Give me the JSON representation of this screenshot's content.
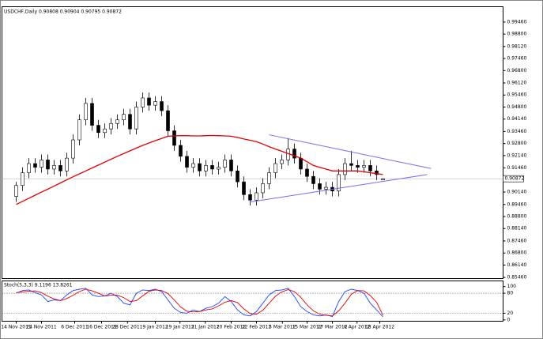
{
  "chart_data": [
    {
      "type": "candlestick",
      "title": "USDCHF,Daily  0.90808 0.90904 0.90795 0.90872",
      "open": [
        0.899,
        0.905,
        0.912,
        0.917,
        0.915,
        0.919,
        0.914,
        0.916,
        0.913,
        0.92,
        0.93,
        0.941,
        0.95,
        0.938,
        0.934,
        0.936,
        0.939,
        0.941,
        0.944,
        0.936,
        0.948,
        0.953,
        0.949,
        0.951,
        0.946,
        0.935,
        0.927,
        0.921,
        0.915,
        0.917,
        0.913,
        0.916,
        0.914,
        0.915,
        0.919,
        0.913,
        0.907,
        0.9,
        0.897,
        0.901,
        0.906,
        0.912,
        0.917,
        0.919,
        0.925,
        0.92,
        0.914,
        0.91,
        0.906,
        0.903,
        0.904,
        0.902,
        0.911,
        0.917,
        0.916,
        0.915,
        0.916,
        0.913,
        0.90808
      ],
      "high": [
        0.907,
        0.915,
        0.92,
        0.92,
        0.922,
        0.922,
        0.919,
        0.919,
        0.923,
        0.933,
        0.944,
        0.953,
        0.953,
        0.941,
        0.939,
        0.942,
        0.944,
        0.947,
        0.947,
        0.951,
        0.956,
        0.956,
        0.954,
        0.954,
        0.949,
        0.938,
        0.93,
        0.924,
        0.92,
        0.92,
        0.919,
        0.919,
        0.918,
        0.922,
        0.922,
        0.916,
        0.91,
        0.903,
        0.904,
        0.909,
        0.915,
        0.92,
        0.922,
        0.931,
        0.928,
        0.923,
        0.917,
        0.913,
        0.909,
        0.907,
        0.907,
        0.914,
        0.92,
        0.924,
        0.919,
        0.919,
        0.919,
        0.916,
        0.90904
      ],
      "low": [
        0.896,
        0.902,
        0.909,
        0.912,
        0.912,
        0.911,
        0.911,
        0.91,
        0.91,
        0.917,
        0.927,
        0.938,
        0.935,
        0.931,
        0.931,
        0.933,
        0.936,
        0.938,
        0.933,
        0.933,
        0.945,
        0.946,
        0.946,
        0.943,
        0.932,
        0.924,
        0.918,
        0.912,
        0.912,
        0.91,
        0.91,
        0.911,
        0.911,
        0.912,
        0.91,
        0.904,
        0.897,
        0.894,
        0.894,
        0.898,
        0.903,
        0.909,
        0.914,
        0.916,
        0.917,
        0.911,
        0.907,
        0.903,
        0.9,
        0.9,
        0.899,
        0.899,
        0.908,
        0.913,
        0.912,
        0.912,
        0.91,
        0.908,
        0.90795
      ],
      "close": [
        0.905,
        0.912,
        0.917,
        0.915,
        0.919,
        0.914,
        0.916,
        0.913,
        0.92,
        0.93,
        0.941,
        0.95,
        0.938,
        0.934,
        0.936,
        0.939,
        0.941,
        0.944,
        0.936,
        0.948,
        0.953,
        0.949,
        0.951,
        0.946,
        0.935,
        0.927,
        0.921,
        0.915,
        0.917,
        0.913,
        0.916,
        0.914,
        0.915,
        0.919,
        0.913,
        0.907,
        0.9,
        0.897,
        0.901,
        0.906,
        0.912,
        0.917,
        0.919,
        0.925,
        0.92,
        0.914,
        0.91,
        0.906,
        0.903,
        0.904,
        0.902,
        0.911,
        0.917,
        0.916,
        0.915,
        0.916,
        0.913,
        0.911,
        0.90872
      ],
      "overlays": [
        {
          "color": "#e00000",
          "values": [
            0.8946,
            0.8963,
            0.898,
            0.8997,
            0.9014,
            0.903,
            0.9047,
            0.9064,
            0.9081,
            0.9098,
            0.9114,
            0.913,
            0.9146,
            0.9162,
            0.9178,
            0.9194,
            0.921,
            0.9225,
            0.924,
            0.9255,
            0.927,
            0.9283,
            0.9296,
            0.9308,
            0.932,
            0.9322,
            0.9323,
            0.9323,
            0.9322,
            0.9322,
            0.9323,
            0.9324,
            0.9323,
            0.9322,
            0.932,
            0.9313,
            0.9305,
            0.9298,
            0.929,
            0.9277,
            0.9263,
            0.925,
            0.9238,
            0.9225,
            0.9213,
            0.92,
            0.918,
            0.916,
            0.915,
            0.914,
            0.913,
            0.913,
            0.913,
            0.913,
            0.913,
            0.9125,
            0.912,
            0.9115,
            0.911
          ]
        }
      ],
      "trendlines": [
        {
          "color": "#7b68ee",
          "x": [
            40,
            65.6
          ],
          "y": [
            0.9328,
            0.9143
          ]
        },
        {
          "color": "#7b68ee",
          "x": [
            36.9,
            65
          ],
          "y": [
            0.8959,
            0.911
          ]
        }
      ],
      "last_price": 0.90872,
      "xlim": [
        -2.25,
        77
      ],
      "ylim": [
        0.854,
        1.003
      ],
      "yticks": [
        {
          "value": 0.9946,
          "label": "0.99460"
        },
        {
          "value": 0.988,
          "label": "0.98800"
        },
        {
          "value": 0.9812,
          "label": "0.98120"
        },
        {
          "value": 0.9746,
          "label": "0.97460"
        },
        {
          "value": 0.968,
          "label": "0.96800"
        },
        {
          "value": 0.9612,
          "label": "0.96120"
        },
        {
          "value": 0.9546,
          "label": "0.95460"
        },
        {
          "value": 0.948,
          "label": "0.94800"
        },
        {
          "value": 0.9414,
          "label": "0.94140"
        },
        {
          "value": 0.9346,
          "label": "0.93460"
        },
        {
          "value": 0.928,
          "label": "0.92800"
        },
        {
          "value": 0.9214,
          "label": "0.92140"
        },
        {
          "value": 0.9146,
          "label": "0.91460"
        },
        {
          "value": 0.9014,
          "label": "0.90140"
        },
        {
          "value": 0.8946,
          "label": "0.89460"
        },
        {
          "value": 0.888,
          "label": "0.88800"
        },
        {
          "value": 0.8814,
          "label": "0.88140"
        },
        {
          "value": 0.8746,
          "label": "0.87460"
        },
        {
          "value": 0.868,
          "label": "0.86800"
        },
        {
          "value": 0.8614,
          "label": "0.86140"
        },
        {
          "value": 0.8546,
          "label": "0.85460"
        }
      ],
      "xticks": [
        {
          "value": 0,
          "label": "14 Nov 2011"
        },
        {
          "value": 4,
          "label": "24 Nov 2011"
        },
        {
          "value": 9.25,
          "label": "6 Dec 2011"
        },
        {
          "value": 13.5,
          "label": "16 Dec 2011"
        },
        {
          "value": 17.6,
          "label": "28 Dec 2011"
        },
        {
          "value": 22,
          "label": "9 Jan 2012"
        },
        {
          "value": 25.9,
          "label": "19 Jan 2012"
        },
        {
          "value": 29.9,
          "label": "31 Jan 2012"
        },
        {
          "value": 34,
          "label": "10 Feb 2012"
        },
        {
          "value": 38,
          "label": "22 Feb 2012"
        },
        {
          "value": 42.1,
          "label": "5 Mar 2012"
        },
        {
          "value": 46,
          "label": "15 Mar 2012"
        },
        {
          "value": 50,
          "label": "27 Mar 2012"
        },
        {
          "value": 53.9,
          "label": "6 Apr 2012"
        },
        {
          "value": 57.5,
          "label": "18 Apr 2012"
        }
      ]
    },
    {
      "type": "line",
      "title": "Stoch(5,3,3) 9.1196 13.8261",
      "series": [
        {
          "color": "#1f3fff",
          "values": [
            80,
            88,
            90,
            82,
            75,
            55,
            60,
            58,
            75,
            88,
            92,
            95,
            75,
            70,
            72,
            80,
            70,
            50,
            45,
            80,
            90,
            88,
            92,
            85,
            60,
            35,
            22,
            20,
            30,
            25,
            35,
            40,
            50,
            70,
            55,
            30,
            15,
            12,
            25,
            50,
            75,
            88,
            90,
            95,
            70,
            40,
            25,
            15,
            12,
            15,
            10,
            55,
            85,
            92,
            88,
            80,
            50,
            30,
            9.1196
          ]
        },
        {
          "color": "#e00000",
          "values": [
            82,
            84,
            86,
            87,
            82,
            71,
            63,
            58,
            64,
            74,
            85,
            92,
            87,
            80,
            72,
            74,
            74,
            67,
            55,
            58,
            72,
            86,
            90,
            88,
            79,
            60,
            39,
            26,
            24,
            25,
            30,
            33,
            42,
            53,
            58,
            52,
            33,
            19,
            17,
            29,
            50,
            71,
            84,
            91,
            85,
            68,
            45,
            27,
            17,
            14,
            12,
            27,
            50,
            77,
            88,
            87,
            73,
            53,
            13.8261
          ]
        }
      ],
      "levels": [
        80,
        20
      ],
      "ylim": [
        -4,
        117
      ],
      "yticks": [
        100,
        80,
        20,
        0
      ]
    }
  ]
}
